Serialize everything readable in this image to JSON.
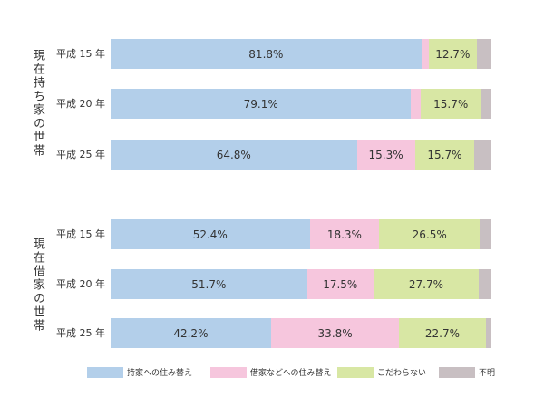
{
  "chart_data": {
    "type": "bar",
    "orientation": "horizontal",
    "stacked": true,
    "xlim": [
      0,
      100
    ],
    "legend_position": "bottom",
    "grid": false,
    "colors": [
      "#b3cfea",
      "#f6c6dd",
      "#d8e7a4",
      "#c8bfc2"
    ],
    "legend": [
      "持家への住み替え",
      "借家などへの住み替え",
      "こだわらない",
      "不明"
    ],
    "groups": [
      {
        "label": "現在持ち家の世帯",
        "rows": [
          {
            "label": "平成 15 年",
            "values": [
              81.8,
              1.9,
              12.7,
              3.6
            ],
            "labels": [
              "81.8%",
              "",
              "12.7%",
              ""
            ]
          },
          {
            "label": "平成 20 年",
            "values": [
              79.1,
              2.6,
              15.7,
              2.6
            ],
            "labels": [
              "79.1%",
              "",
              "15.7%",
              ""
            ]
          },
          {
            "label": "平成 25 年",
            "values": [
              64.8,
              15.3,
              15.7,
              4.2
            ],
            "labels": [
              "64.8%",
              "15.3%",
              "15.7%",
              ""
            ]
          }
        ]
      },
      {
        "label": "現在借家の世帯",
        "rows": [
          {
            "label": "平成 15 年",
            "values": [
              52.4,
              18.3,
              26.5,
              2.8
            ],
            "labels": [
              "52.4%",
              "18.3%",
              "26.5%",
              ""
            ]
          },
          {
            "label": "平成 20 年",
            "values": [
              51.7,
              17.5,
              27.7,
              3.1
            ],
            "labels": [
              "51.7%",
              "17.5%",
              "27.7%",
              ""
            ]
          },
          {
            "label": "平成 25 年",
            "values": [
              42.2,
              33.8,
              22.7,
              1.3
            ],
            "labels": [
              "42.2%",
              "33.8%",
              "22.7%",
              ""
            ]
          }
        ]
      }
    ]
  }
}
